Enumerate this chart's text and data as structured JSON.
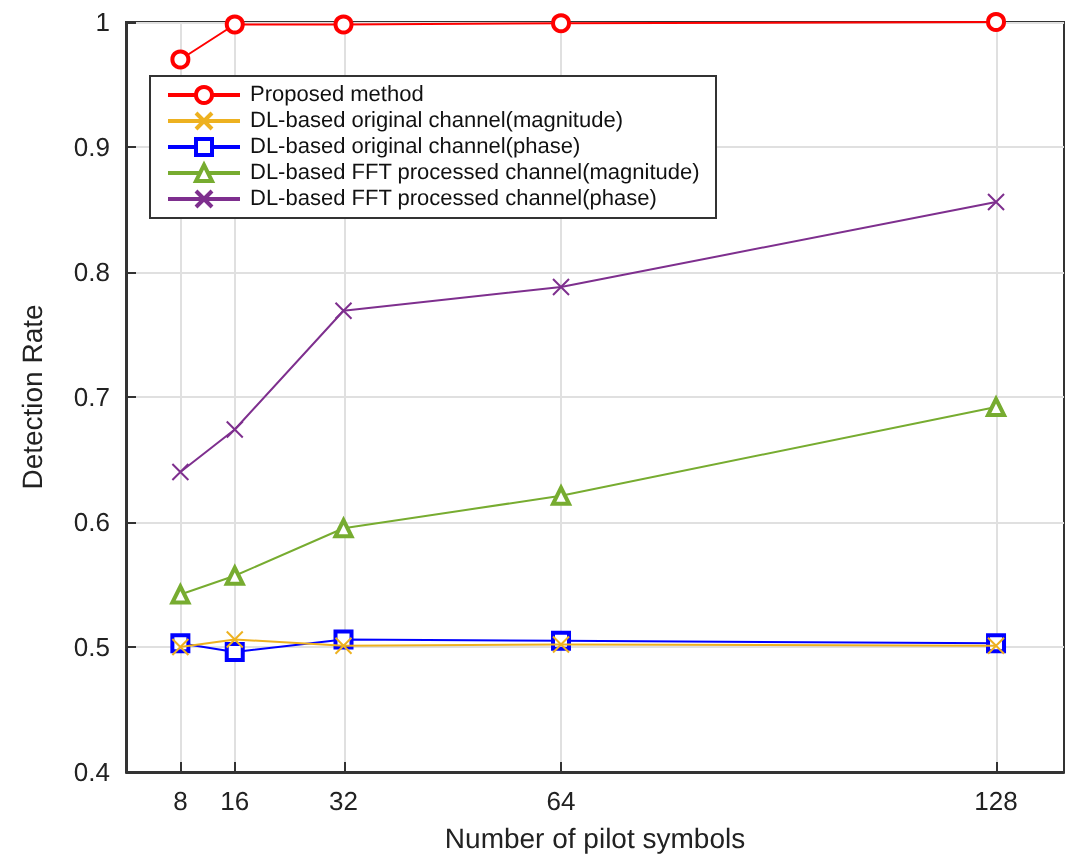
{
  "chart_data": {
    "type": "line",
    "xlabel": "Number of pilot symbols",
    "ylabel": "Detection Rate",
    "x": [
      8,
      16,
      32,
      64,
      128
    ],
    "series": [
      {
        "name": "Proposed method",
        "color": "#ff0000",
        "marker": "circle",
        "values": [
          0.97,
          0.998,
          0.998,
          0.999,
          1.0
        ]
      },
      {
        "name": "DL-based original channel(magnitude)",
        "color": "#edb120",
        "marker": "cross",
        "values": [
          0.5,
          0.506,
          0.501,
          0.502,
          0.501
        ]
      },
      {
        "name": "DL-based original channel(phase)",
        "color": "#0000ff",
        "marker": "square",
        "values": [
          0.503,
          0.496,
          0.506,
          0.505,
          0.503
        ]
      },
      {
        "name": "DL-based FFT processed channel(magnitude)",
        "color": "#77ac30",
        "marker": "triangle",
        "values": [
          0.542,
          0.557,
          0.595,
          0.621,
          0.692
        ]
      },
      {
        "name": "DL-based FFT processed channel(phase)",
        "color": "#7e2f8e",
        "marker": "cross",
        "values": [
          0.64,
          0.674,
          0.769,
          0.788,
          0.856
        ]
      }
    ],
    "xlim": [
      0,
      138
    ],
    "xticks": [
      8,
      16,
      32,
      64,
      128
    ],
    "ylim": [
      0.4,
      1
    ],
    "yticks": [
      0.4,
      0.5,
      0.6,
      0.7,
      0.8,
      0.9,
      1
    ],
    "grid": true,
    "legend": "top left"
  }
}
